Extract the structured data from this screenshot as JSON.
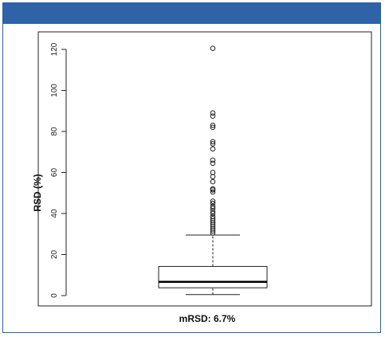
{
  "colors": {
    "header": "#2e63a8",
    "border": "#2f5e9a",
    "plot": "#222222"
  },
  "chart_data": {
    "type": "boxplot",
    "ylabel": "RSD (%)",
    "xlabel": "mRSD: 6.7%",
    "ylim": [
      -2,
      126
    ],
    "yticks": [
      0,
      20,
      40,
      60,
      80,
      100,
      120
    ],
    "ytick_labels": [
      "0",
      "20",
      "40",
      "60",
      "80",
      "100",
      "120"
    ],
    "box": {
      "whisker_low": 0.5,
      "q1": 3.8,
      "median": 6.7,
      "q3": 14.2,
      "whisker_high": 29.5
    },
    "outliers": [
      30.5,
      31.5,
      32.5,
      33.5,
      34.5,
      35.5,
      36.5,
      37.5,
      38.5,
      40,
      41,
      42.5,
      43.5,
      45,
      46,
      50.5,
      51.5,
      52,
      55.5,
      58,
      60,
      64.5,
      66,
      71.5,
      74,
      75,
      82,
      83,
      87.5,
      89,
      120.5
    ]
  }
}
